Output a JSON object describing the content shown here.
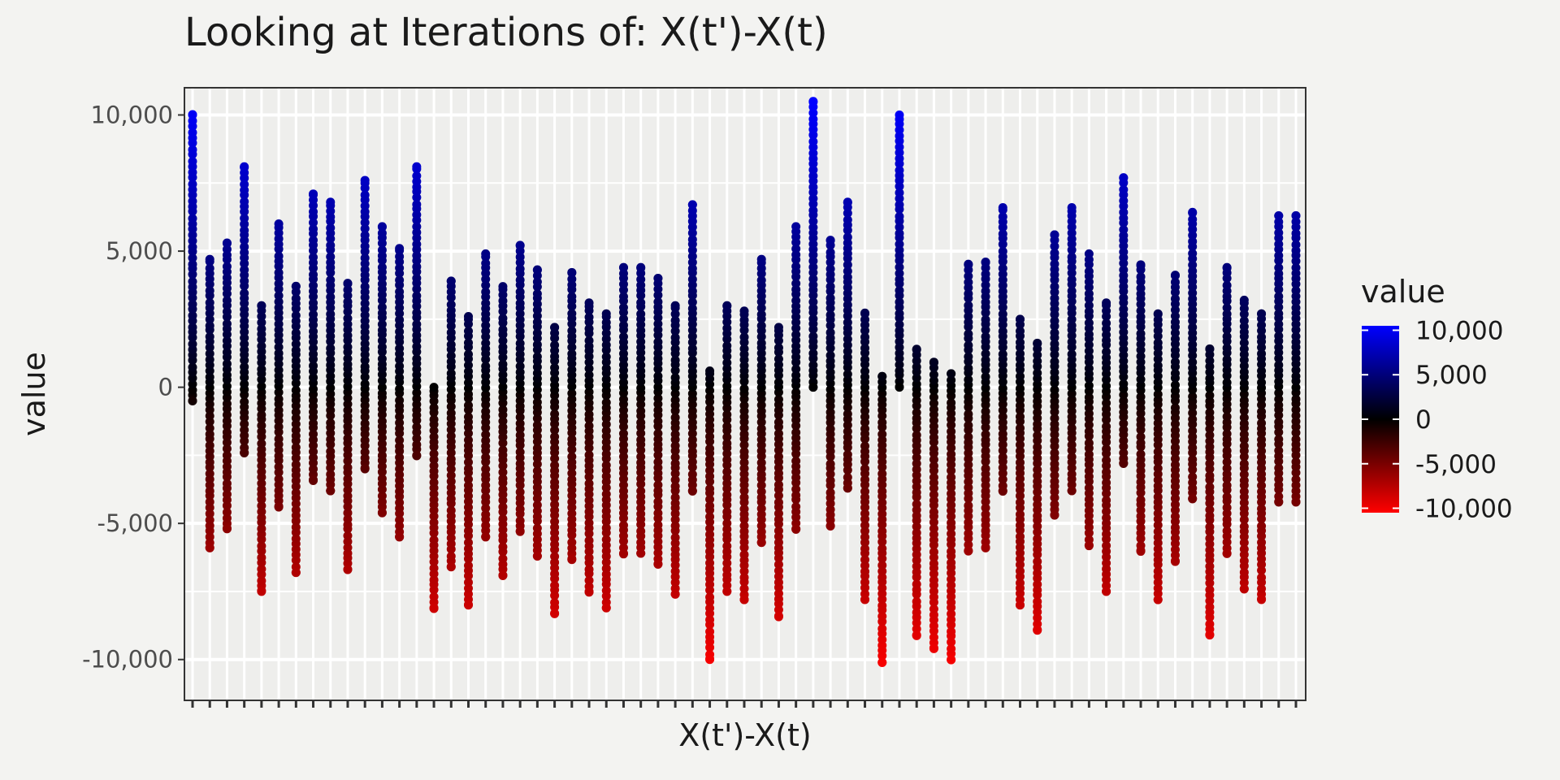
{
  "chart_data": {
    "type": "scatter",
    "title": "Looking at Iterations of: X(t')-X(t)",
    "xlabel": "X(t')-X(t)",
    "ylabel": "value",
    "ylim": [
      -11500,
      11000
    ],
    "yticks": [
      10000,
      5000,
      0,
      -5000,
      -10000
    ],
    "ytick_labels": [
      "10,000",
      "5,000",
      "0",
      "-5,000",
      "-10,000"
    ],
    "x_count": 65,
    "x_tick_labels_shown": false,
    "grid": true,
    "legend": {
      "title": "value",
      "position": "right",
      "type": "colorbar",
      "labels": [
        "10,000",
        "5,000",
        "0",
        "-5,000",
        "-10,000"
      ],
      "values": [
        10000,
        5000,
        0,
        -5000,
        -10000
      ],
      "colors": {
        "high": "#0000ff",
        "mid": "#000000",
        "low": "#ff0000"
      },
      "limits": [
        -10500,
        10500
      ]
    },
    "series_ranges": [
      [
        -500,
        10000
      ],
      [
        -5900,
        4700
      ],
      [
        -5200,
        5300
      ],
      [
        -2400,
        8100
      ],
      [
        -7500,
        3000
      ],
      [
        -4400,
        6000
      ],
      [
        -6800,
        3700
      ],
      [
        -3400,
        7100
      ],
      [
        -3800,
        6800
      ],
      [
        -6700,
        3800
      ],
      [
        -3000,
        7600
      ],
      [
        -4600,
        5900
      ],
      [
        -5500,
        5100
      ],
      [
        -2500,
        8100
      ],
      [
        -8100,
        0
      ],
      [
        -6600,
        3900
      ],
      [
        -8000,
        2600
      ],
      [
        -5500,
        4900
      ],
      [
        -6900,
        3700
      ],
      [
        -5300,
        5200
      ],
      [
        -6200,
        4300
      ],
      [
        -8300,
        2200
      ],
      [
        -6300,
        4200
      ],
      [
        -7500,
        3100
      ],
      [
        -8100,
        2700
      ],
      [
        -6100,
        4400
      ],
      [
        -6100,
        4400
      ],
      [
        -6500,
        4000
      ],
      [
        -7600,
        3000
      ],
      [
        -3800,
        6700
      ],
      [
        -10000,
        600
      ],
      [
        -7500,
        3000
      ],
      [
        -7800,
        2800
      ],
      [
        -5700,
        4700
      ],
      [
        -8400,
        2200
      ],
      [
        -5200,
        5900
      ],
      [
        0,
        10500
      ],
      [
        -5100,
        5400
      ],
      [
        -3700,
        6800
      ],
      [
        -7800,
        2700
      ],
      [
        -10100,
        400
      ],
      [
        0,
        10000
      ],
      [
        -9100,
        1400
      ],
      [
        -9600,
        900
      ],
      [
        -10000,
        500
      ],
      [
        -6000,
        4500
      ],
      [
        -5900,
        4600
      ],
      [
        -3800,
        6600
      ],
      [
        -8000,
        2500
      ],
      [
        -8900,
        1600
      ],
      [
        -4700,
        5600
      ],
      [
        -3800,
        6600
      ],
      [
        -5800,
        4900
      ],
      [
        -7500,
        3100
      ],
      [
        -2800,
        7700
      ],
      [
        -6000,
        4500
      ],
      [
        -7800,
        2700
      ],
      [
        -6400,
        4100
      ],
      [
        -4100,
        6400
      ],
      [
        -9100,
        1400
      ],
      [
        -6100,
        4400
      ],
      [
        -7400,
        3200
      ],
      [
        -7800,
        2700
      ],
      [
        -4200,
        6300
      ],
      [
        -4200,
        6300
      ]
    ]
  }
}
